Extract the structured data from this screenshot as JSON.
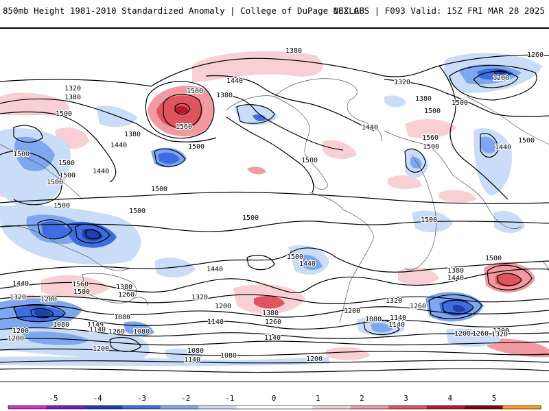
{
  "header": {
    "left_title": "850mb Height 1981-2010 Standardized Anomaly | College of DuPage NEXLAB",
    "right_title": "18Z GFS | F093 Valid: 15Z FRI MAR 28 2025"
  },
  "contour_labels": [
    {
      "text": "1380"
    },
    {
      "text": "1260"
    },
    {
      "text": "1320"
    },
    {
      "text": "1380"
    },
    {
      "text": "1440"
    },
    {
      "text": "1500"
    },
    {
      "text": "1380"
    },
    {
      "text": "1500"
    },
    {
      "text": "1200"
    },
    {
      "text": "1320"
    },
    {
      "text": "1380"
    },
    {
      "text": "1500"
    },
    {
      "text": "1500"
    },
    {
      "text": "1560"
    },
    {
      "text": "1500"
    },
    {
      "text": "1440"
    },
    {
      "text": "1500"
    },
    {
      "text": "1440"
    },
    {
      "text": "1500"
    },
    {
      "text": "1500"
    },
    {
      "text": "1560"
    },
    {
      "text": "1440"
    },
    {
      "text": "1500"
    },
    {
      "text": "1380"
    },
    {
      "text": "1440"
    },
    {
      "text": "1500"
    },
    {
      "text": "1500"
    },
    {
      "text": "1500"
    },
    {
      "text": "1500"
    },
    {
      "text": "1500"
    },
    {
      "text": "1500"
    },
    {
      "text": "1500"
    },
    {
      "text": "1500"
    },
    {
      "text": "1440"
    },
    {
      "text": "1500"
    },
    {
      "text": "1500"
    },
    {
      "text": "1440"
    },
    {
      "text": "1380"
    },
    {
      "text": "1440"
    },
    {
      "text": "1560"
    },
    {
      "text": "1500"
    },
    {
      "text": "1380"
    },
    {
      "text": "1260"
    },
    {
      "text": "1440"
    },
    {
      "text": "1320"
    },
    {
      "text": "1200"
    },
    {
      "text": "1320"
    },
    {
      "text": "1200"
    },
    {
      "text": "1380"
    },
    {
      "text": "1320"
    },
    {
      "text": "1260"
    },
    {
      "text": "1140"
    },
    {
      "text": "1080"
    },
    {
      "text": "1200"
    },
    {
      "text": "1140"
    },
    {
      "text": "1260"
    },
    {
      "text": "1080"
    },
    {
      "text": "1140"
    },
    {
      "text": "1200"
    },
    {
      "text": "1140"
    },
    {
      "text": "1260"
    },
    {
      "text": "1200"
    },
    {
      "text": "1080"
    },
    {
      "text": "1140"
    },
    {
      "text": "1080"
    },
    {
      "text": "1140"
    },
    {
      "text": "1200"
    },
    {
      "text": "1320"
    },
    {
      "text": "1200"
    },
    {
      "text": "1260"
    },
    {
      "text": "1080"
    },
    {
      "text": "1200"
    },
    {
      "text": "1140"
    },
    {
      "text": "1080"
    },
    {
      "text": "1200"
    }
  ],
  "colorbar": {
    "ticks": [
      "-5",
      "-4",
      "-3",
      "-2",
      "-1",
      "0",
      "1",
      "2",
      "3",
      "4",
      "5"
    ],
    "colors": [
      "#cc33cc",
      "#7a1fb0",
      "#1f3fae",
      "#3d6de0",
      "#7fa7f0",
      "#c9ddf8",
      "#ffffff",
      "#ffffff",
      "#f8cfd2",
      "#f29aa1",
      "#e0545e",
      "#b81a24",
      "#8a0010",
      "#ff9a1e"
    ]
  }
}
